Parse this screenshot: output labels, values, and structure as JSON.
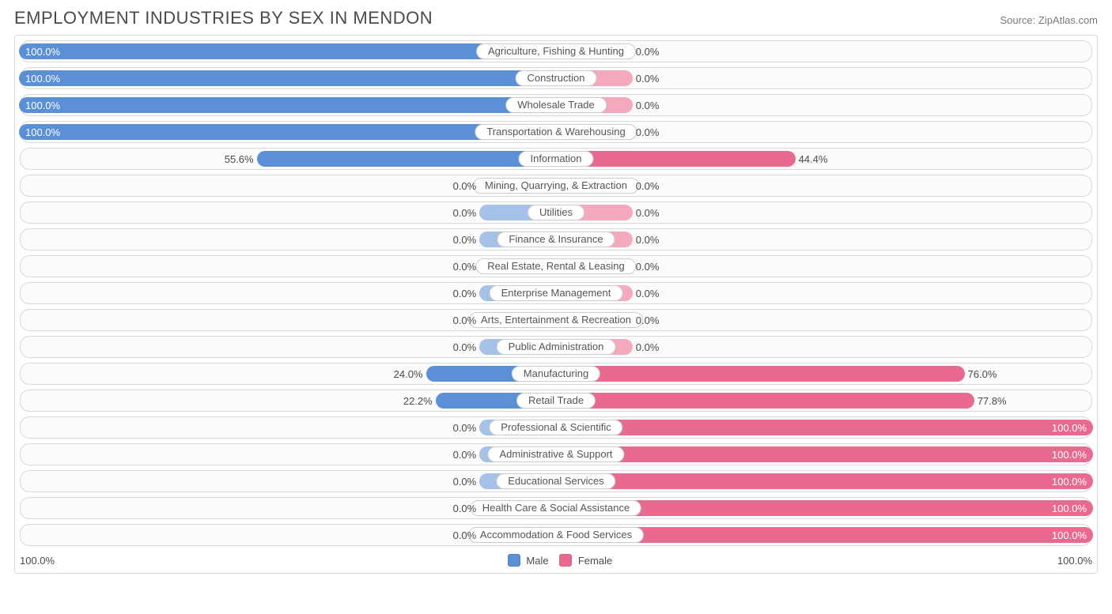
{
  "title": "EMPLOYMENT INDUSTRIES BY SEX IN MENDON",
  "source": "Source: ZipAtlas.com",
  "chart": {
    "type": "diverging-bar",
    "male_color_strong": "#5b8fd6",
    "male_color_muted": "#a6c1e8",
    "female_color_strong": "#e86a8f",
    "female_color_muted": "#f4a9bd",
    "track_bg": "#fbfbfb",
    "track_border": "#d9d9d9",
    "panel_border": "#d9d9d9",
    "label_bg": "#ffffff",
    "label_border": "#cccccc",
    "text_color": "#4a4a4a",
    "min_bar_pct": 14,
    "axis_left": "100.0%",
    "axis_right": "100.0%",
    "legend": {
      "male": "Male",
      "female": "Female"
    },
    "rows": [
      {
        "label": "Agriculture, Fishing & Hunting",
        "male": 100.0,
        "female": 0.0
      },
      {
        "label": "Construction",
        "male": 100.0,
        "female": 0.0
      },
      {
        "label": "Wholesale Trade",
        "male": 100.0,
        "female": 0.0
      },
      {
        "label": "Transportation & Warehousing",
        "male": 100.0,
        "female": 0.0
      },
      {
        "label": "Information",
        "male": 55.6,
        "female": 44.4
      },
      {
        "label": "Mining, Quarrying, & Extraction",
        "male": 0.0,
        "female": 0.0
      },
      {
        "label": "Utilities",
        "male": 0.0,
        "female": 0.0
      },
      {
        "label": "Finance & Insurance",
        "male": 0.0,
        "female": 0.0
      },
      {
        "label": "Real Estate, Rental & Leasing",
        "male": 0.0,
        "female": 0.0
      },
      {
        "label": "Enterprise Management",
        "male": 0.0,
        "female": 0.0
      },
      {
        "label": "Arts, Entertainment & Recreation",
        "male": 0.0,
        "female": 0.0
      },
      {
        "label": "Public Administration",
        "male": 0.0,
        "female": 0.0
      },
      {
        "label": "Manufacturing",
        "male": 24.0,
        "female": 76.0
      },
      {
        "label": "Retail Trade",
        "male": 22.2,
        "female": 77.8
      },
      {
        "label": "Professional & Scientific",
        "male": 0.0,
        "female": 100.0
      },
      {
        "label": "Administrative & Support",
        "male": 0.0,
        "female": 100.0
      },
      {
        "label": "Educational Services",
        "male": 0.0,
        "female": 100.0
      },
      {
        "label": "Health Care & Social Assistance",
        "male": 0.0,
        "female": 100.0
      },
      {
        "label": "Accommodation & Food Services",
        "male": 0.0,
        "female": 100.0
      }
    ]
  }
}
